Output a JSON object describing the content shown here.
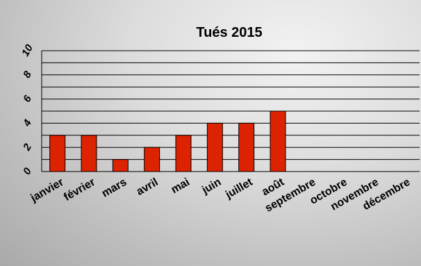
{
  "chart_data": {
    "type": "bar",
    "title": "Tués 2015",
    "categories": [
      "janvier",
      "février",
      "mars",
      "avril",
      "mai",
      "juin",
      "juillet",
      "août",
      "septembre",
      "octobre",
      "novembre",
      "décembre"
    ],
    "values": [
      3,
      3,
      1,
      2,
      3,
      4,
      4,
      5,
      null,
      null,
      null,
      null
    ],
    "yticks": [
      "0",
      "2",
      "4",
      "6",
      "8",
      "10"
    ],
    "ylim": [
      0,
      10
    ],
    "grid_step": 1,
    "grid": true,
    "legend": false,
    "bar_color": "#dd2200"
  }
}
